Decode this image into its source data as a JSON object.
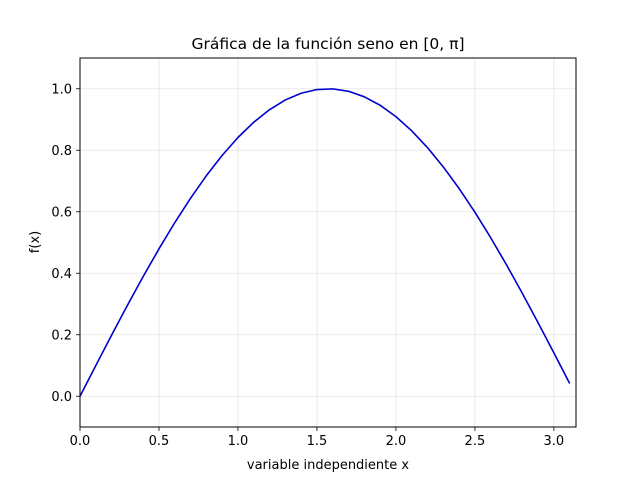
{
  "chart_data": {
    "type": "line",
    "title_text": "Gráfica de la función seno en [0, π]",
    "xlabel_text": "variable independiente x",
    "ylabel_text": "f(x)",
    "xlim": [
      0,
      3.14
    ],
    "ylim": [
      -0.1,
      1.1
    ],
    "grid": true,
    "xticks": [
      0,
      0.5,
      1.0,
      1.5,
      2.0,
      2.5,
      3.0
    ],
    "xtick_labels": [
      "0.0",
      "0.5",
      "1.0",
      "1.5",
      "2.0",
      "2.5",
      "3.0"
    ],
    "yticks": [
      0,
      0.2,
      0.4,
      0.6,
      0.8,
      1.0
    ],
    "ytick_labels": [
      "0.0",
      "0.2",
      "0.4",
      "0.6",
      "0.8",
      "1.0"
    ],
    "series": [
      {
        "color": "#0000cc",
        "x": [
          0.0,
          0.1,
          0.2,
          0.3,
          0.4,
          0.5,
          0.6,
          0.7,
          0.8,
          0.9,
          1.0,
          1.1,
          1.2,
          1.3,
          1.4,
          1.5,
          1.6,
          1.7,
          1.8,
          1.9,
          2.0,
          2.1,
          2.2,
          2.3,
          2.4,
          2.5,
          2.6,
          2.7,
          2.8,
          2.9,
          3.0,
          3.1
        ],
        "y": [
          0.0,
          0.0998,
          0.1987,
          0.2955,
          0.3894,
          0.4794,
          0.5646,
          0.6442,
          0.7174,
          0.7833,
          0.8415,
          0.8912,
          0.932,
          0.9636,
          0.9854,
          0.9975,
          0.9996,
          0.9917,
          0.9738,
          0.9463,
          0.9093,
          0.8632,
          0.8085,
          0.7457,
          0.6755,
          0.5985,
          0.5155,
          0.4274,
          0.335,
          0.2392,
          0.1411,
          0.0416
        ]
      }
    ]
  }
}
